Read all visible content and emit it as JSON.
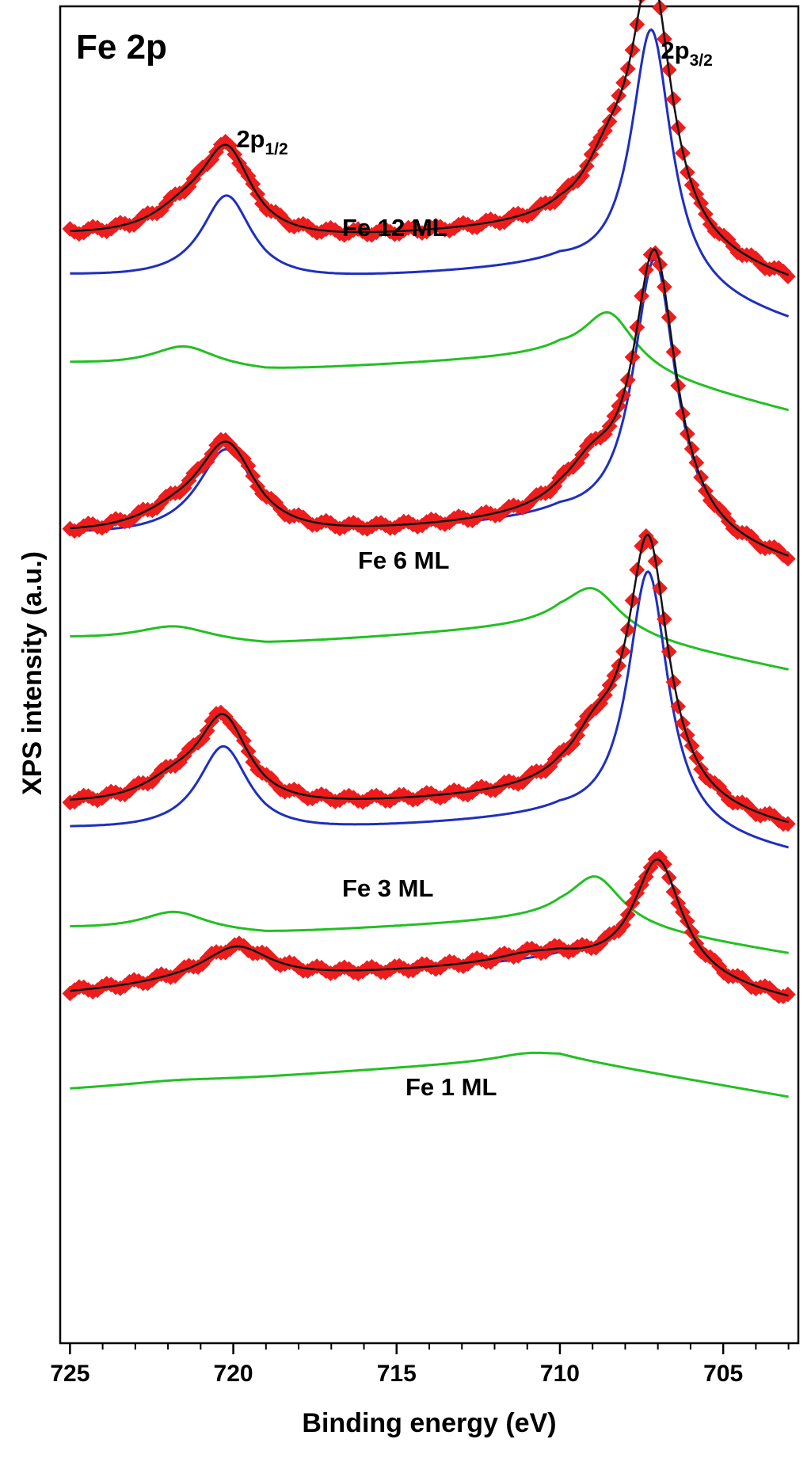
{
  "chart_data": {
    "type": "line",
    "title": "Fe 2p",
    "xlabel": "Binding energy (eV)",
    "ylabel": "XPS intensity (a.u.)",
    "x_reversed": true,
    "xlim": [
      725.3,
      702.7
    ],
    "xticks": [
      725,
      720,
      715,
      710,
      705
    ],
    "xtick_labels": [
      "725",
      "720",
      "715",
      "710",
      "705"
    ],
    "yticks_shown": false,
    "grid": false,
    "legend": "none",
    "colors": {
      "data_markers": "#ee1c1c",
      "envelope_fit": "#111111",
      "main_component": "#1f2fbf",
      "satellite_component": "#22c022"
    },
    "peak_annotations": [
      {
        "main": "2p",
        "sub": "1/2",
        "x": 720.2
      },
      {
        "main": "2p",
        "sub": "3/2",
        "x": 707.2
      }
    ],
    "spectra": [
      {
        "label": "Fe 12 ML",
        "data_baseline": [
          [
            725,
            300
          ],
          [
            719,
            310
          ],
          [
            710,
            290
          ],
          [
            703,
            360
          ]
        ],
        "peaks": [
          {
            "component": "main",
            "center": 707.2,
            "intensity": 330,
            "width": 0.75,
            "satellite_center": 708.5,
            "satellite_intensity": 70
          },
          {
            "component": "main",
            "center": 720.2,
            "intensity": 110,
            "width": 0.95,
            "satellite_center": 721.5,
            "satellite_intensity": 28
          }
        ],
        "main_offset": 50,
        "satellite_offset": 110
      },
      {
        "label": "Fe 6 ML",
        "data_baseline": [
          [
            725,
            677
          ],
          [
            719,
            685
          ],
          [
            710,
            660
          ],
          [
            703,
            717
          ]
        ],
        "peaks": [
          {
            "component": "main",
            "center": 707.1,
            "intensity": 355,
            "width": 0.8,
            "satellite_center": 709.0,
            "satellite_intensity": 55
          },
          {
            "component": "main",
            "center": 720.2,
            "intensity": 115,
            "width": 1.1,
            "satellite_center": 721.8,
            "satellite_intensity": 20
          }
        ],
        "main_offset": 0,
        "satellite_offset": 130
      },
      {
        "label": "Fe 3 ML",
        "data_baseline": [
          [
            725,
            1018
          ],
          [
            719,
            1025
          ],
          [
            710,
            1005
          ],
          [
            703,
            1050
          ]
        ],
        "peaks": [
          {
            "component": "main",
            "center": 707.3,
            "intensity": 330,
            "width": 0.75,
            "satellite_center": 708.9,
            "satellite_intensity": 60
          },
          {
            "component": "main",
            "center": 720.3,
            "intensity": 110,
            "width": 0.95,
            "satellite_center": 721.8,
            "satellite_intensity": 25
          }
        ],
        "main_offset": 30,
        "satellite_offset": 125
      },
      {
        "label": "Fe 1 ML",
        "data_baseline": [
          [
            725,
            1255
          ],
          [
            719,
            1240
          ],
          [
            710,
            1215
          ],
          [
            703,
            1265
          ]
        ],
        "peaks": [
          {
            "component": "main",
            "center": 707.0,
            "intensity": 150,
            "width": 0.9,
            "satellite_center": 711.0,
            "satellite_intensity": 8
          },
          {
            "component": "main",
            "center": 719.9,
            "intensity": 45,
            "width": 1.3,
            "satellite_center": 721.8,
            "satellite_intensity": 3
          }
        ],
        "main_offset": 0,
        "satellite_offset": 120
      }
    ]
  }
}
